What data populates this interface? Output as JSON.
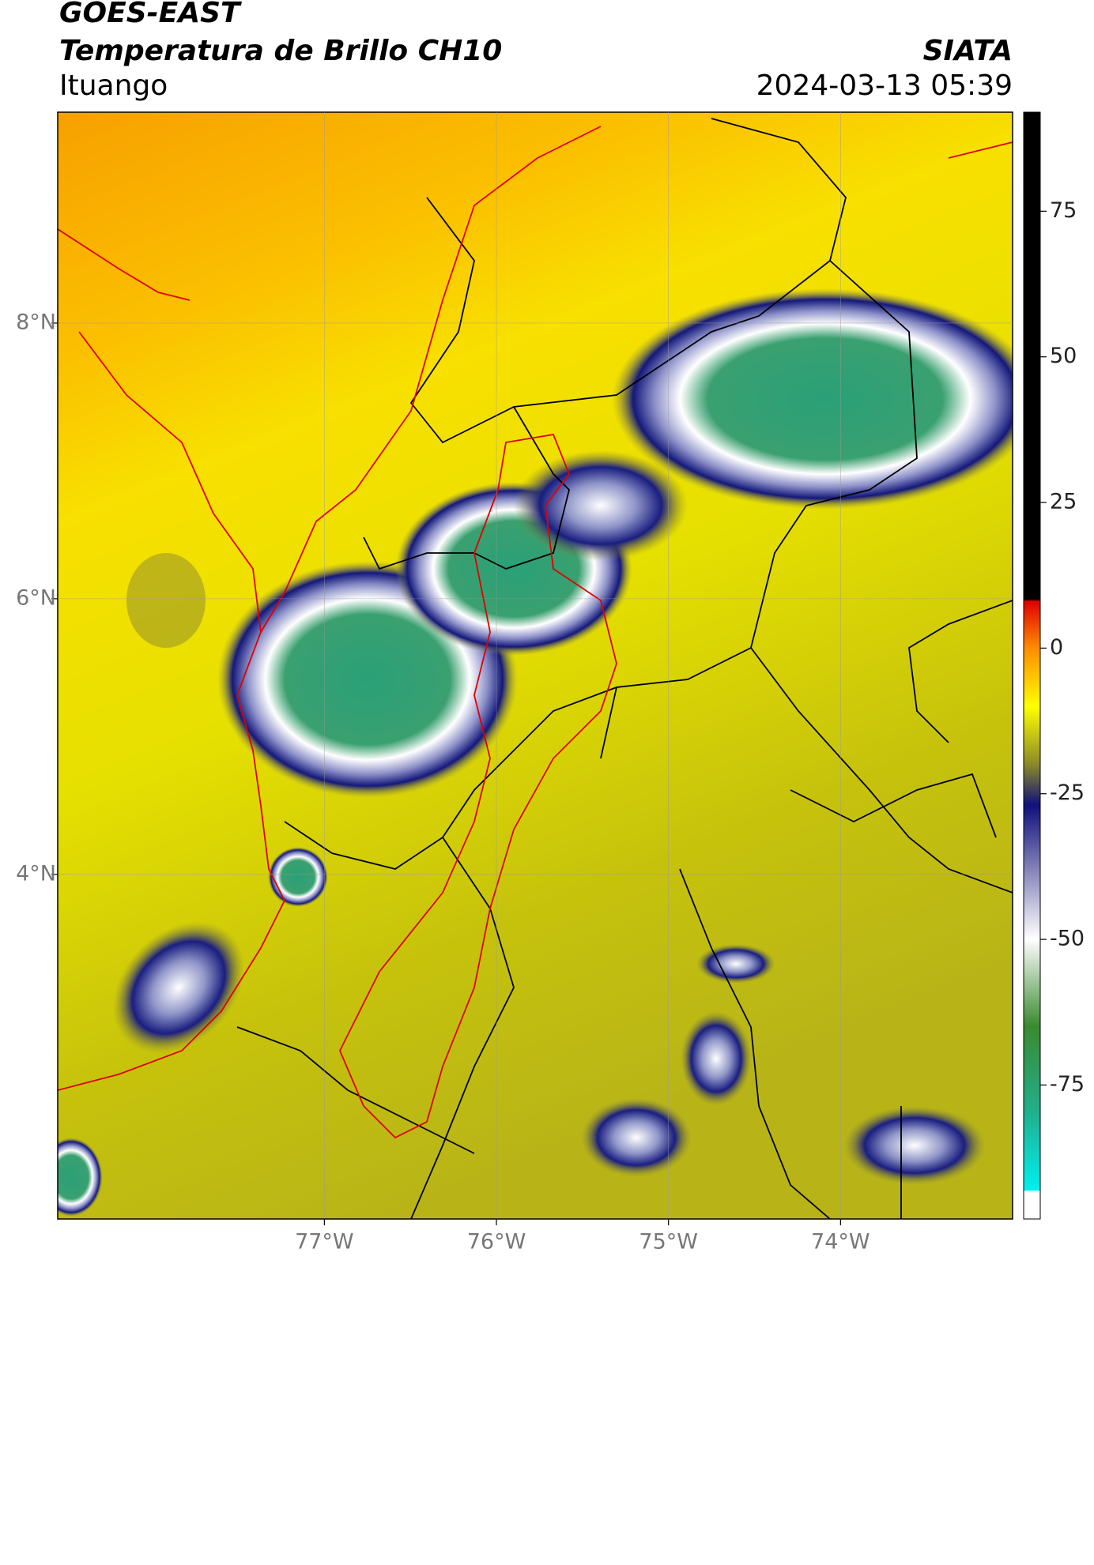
{
  "header": {
    "title_line1": "GOES-EAST",
    "title_line2": "Temperatura de Brillo CH10",
    "brand": "SIATA",
    "location": "Ituango",
    "datetime": "2024-03-13 05:39"
  },
  "map": {
    "xlim": [
      -78.55,
      -73.0
    ],
    "ylim": [
      1.5,
      9.53
    ],
    "xticks": [
      {
        "value": -77,
        "label": "77°W"
      },
      {
        "value": -76,
        "label": "76°W"
      },
      {
        "value": -75,
        "label": "75°W"
      },
      {
        "value": -74,
        "label": "74°W"
      }
    ],
    "yticks": [
      {
        "value": 8,
        "label": "8°N"
      },
      {
        "value": 6,
        "label": "6°N"
      },
      {
        "value": 4,
        "label": "4°N"
      }
    ]
  },
  "colorbar": {
    "lim": [
      -98,
      92
    ],
    "ticks": [
      75,
      50,
      25,
      0,
      -25,
      -50,
      -75
    ]
  }
}
